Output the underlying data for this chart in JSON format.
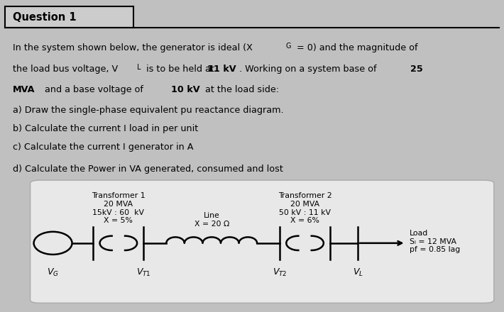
{
  "bg_color": "#c0c0c0",
  "top_bg_color": "#cccccc",
  "bot_bg_color": "#d0d0d0",
  "title": "Question 1",
  "font_family": "DejaVu Sans",
  "t1_label": "Transformer 1\n20 MVA\n15kV : 60  kV\nX = 5%",
  "t2_label": "Transformer 2\n20 MVA\n50 kV : 11 kV\nX = 6%",
  "line_label": "Line\nX = 20 Ω",
  "load_label": "Load\nSₗ = 12 MVA\npf = 0.85 lag",
  "vg_label": "V_G",
  "vt1_label": "V_{T1}",
  "vt2_label": "V_{T2}",
  "vl_label": "V_L"
}
